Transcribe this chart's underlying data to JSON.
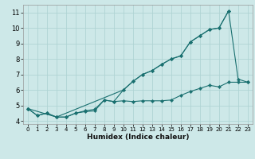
{
  "xlabel": "Humidex (Indice chaleur)",
  "xlim": [
    -0.5,
    23.5
  ],
  "ylim": [
    3.8,
    11.5
  ],
  "yticks": [
    4,
    5,
    6,
    7,
    8,
    9,
    10,
    11
  ],
  "xticks": [
    0,
    1,
    2,
    3,
    4,
    5,
    6,
    7,
    8,
    9,
    10,
    11,
    12,
    13,
    14,
    15,
    16,
    17,
    18,
    19,
    20,
    21,
    22,
    23
  ],
  "bg_color": "#cde8e8",
  "grid_color": "#b0d4d4",
  "line_color": "#1a7070",
  "line1_x": [
    0,
    1,
    2,
    3,
    4,
    5,
    6,
    7,
    8,
    9,
    10,
    11,
    12,
    13,
    14,
    15,
    16,
    17,
    18,
    19,
    20,
    21,
    22,
    23
  ],
  "line1_y": [
    4.8,
    4.35,
    4.5,
    4.25,
    4.25,
    4.5,
    4.6,
    4.65,
    5.35,
    5.25,
    5.3,
    5.25,
    5.3,
    5.3,
    5.3,
    5.35,
    5.65,
    5.9,
    6.1,
    6.3,
    6.2,
    6.5,
    6.5,
    6.5
  ],
  "line2_x": [
    0,
    1,
    2,
    3,
    4,
    5,
    6,
    7,
    8,
    9,
    10,
    11,
    12,
    13,
    14,
    15,
    16,
    17,
    18,
    19,
    20,
    21,
    22,
    23
  ],
  "line2_y": [
    4.8,
    4.35,
    4.5,
    4.25,
    4.25,
    4.5,
    4.65,
    4.75,
    5.35,
    5.25,
    6.0,
    6.55,
    7.0,
    7.25,
    7.65,
    8.0,
    8.2,
    9.1,
    9.5,
    9.9,
    10.0,
    11.1,
    6.7,
    6.5
  ],
  "line3_x": [
    0,
    3,
    10,
    11,
    12,
    13,
    14,
    15,
    16,
    17,
    18,
    19,
    20,
    21
  ],
  "line3_y": [
    4.8,
    4.25,
    6.0,
    6.55,
    7.0,
    7.25,
    7.65,
    8.0,
    8.2,
    9.1,
    9.5,
    9.9,
    10.0,
    11.1
  ]
}
